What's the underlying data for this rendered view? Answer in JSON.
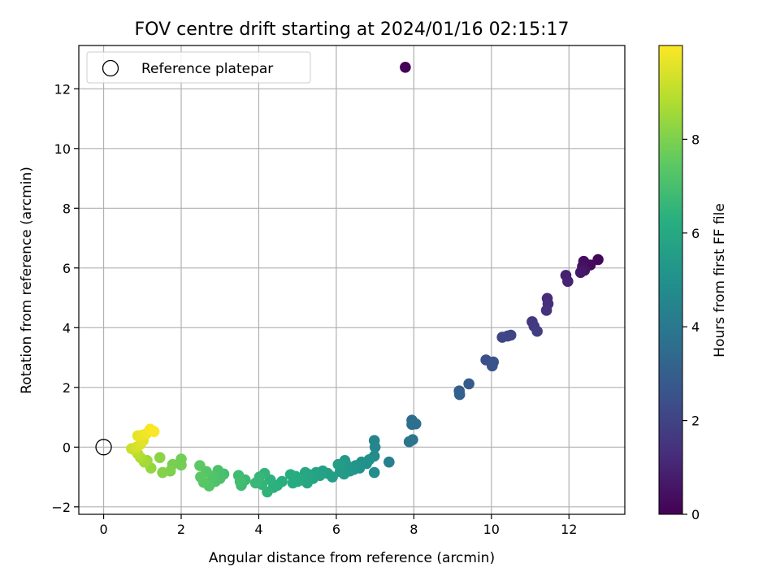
{
  "chart_data": {
    "type": "scatter",
    "title": "FOV centre drift starting at 2024/01/16 02:15:17",
    "xlabel": "Angular distance from reference (arcmin)",
    "ylabel": "Rotation from reference (arcmin)",
    "xlim": [
      -0.64,
      13.44
    ],
    "ylim": [
      -2.25,
      13.45
    ],
    "xticks": [
      0,
      2,
      4,
      6,
      8,
      10,
      12
    ],
    "yticks": [
      -2,
      0,
      2,
      4,
      6,
      8,
      10,
      12
    ],
    "grid": true,
    "legend": {
      "position": "top-left",
      "entries": [
        {
          "label": "Reference platepar",
          "marker": "open-circle"
        }
      ]
    },
    "reference_point": {
      "x": 0,
      "y": 0
    },
    "colorbar": {
      "label": "Hours from first FF file",
      "range": [
        0,
        10
      ],
      "ticks": [
        0,
        2,
        4,
        6,
        8
      ],
      "colormap": "viridis"
    },
    "points": [
      {
        "x": 7.78,
        "y": 12.72,
        "c": 0.05
      },
      {
        "x": 12.75,
        "y": 6.28,
        "c": 0.15
      },
      {
        "x": 12.55,
        "y": 6.1,
        "c": 0.25
      },
      {
        "x": 12.38,
        "y": 6.22,
        "c": 0.35
      },
      {
        "x": 12.35,
        "y": 6.05,
        "c": 0.45
      },
      {
        "x": 12.4,
        "y": 5.92,
        "c": 0.55
      },
      {
        "x": 12.3,
        "y": 5.85,
        "c": 0.65
      },
      {
        "x": 11.92,
        "y": 5.75,
        "c": 0.9
      },
      {
        "x": 11.97,
        "y": 5.55,
        "c": 1.0
      },
      {
        "x": 11.44,
        "y": 4.98,
        "c": 1.2
      },
      {
        "x": 11.46,
        "y": 4.8,
        "c": 1.3
      },
      {
        "x": 11.42,
        "y": 4.58,
        "c": 1.4
      },
      {
        "x": 11.05,
        "y": 4.2,
        "c": 1.6
      },
      {
        "x": 11.1,
        "y": 4.05,
        "c": 1.7
      },
      {
        "x": 11.18,
        "y": 3.88,
        "c": 1.8
      },
      {
        "x": 10.5,
        "y": 3.75,
        "c": 2.0
      },
      {
        "x": 10.42,
        "y": 3.72,
        "c": 2.05
      },
      {
        "x": 10.28,
        "y": 3.68,
        "c": 2.1
      },
      {
        "x": 9.86,
        "y": 2.92,
        "c": 2.4
      },
      {
        "x": 10.05,
        "y": 2.85,
        "c": 2.5
      },
      {
        "x": 10.02,
        "y": 2.72,
        "c": 2.55
      },
      {
        "x": 9.42,
        "y": 2.12,
        "c": 2.8
      },
      {
        "x": 9.17,
        "y": 1.88,
        "c": 3.0
      },
      {
        "x": 9.18,
        "y": 1.76,
        "c": 3.05
      },
      {
        "x": 7.95,
        "y": 0.9,
        "c": 3.5
      },
      {
        "x": 8.05,
        "y": 0.78,
        "c": 3.6
      },
      {
        "x": 7.95,
        "y": 0.76,
        "c": 3.65
      },
      {
        "x": 7.97,
        "y": 0.25,
        "c": 3.8
      },
      {
        "x": 7.88,
        "y": 0.18,
        "c": 3.9
      },
      {
        "x": 7.36,
        "y": -0.5,
        "c": 4.3
      },
      {
        "x": 6.98,
        "y": 0.22,
        "c": 4.5
      },
      {
        "x": 7.0,
        "y": 0.0,
        "c": 4.6
      },
      {
        "x": 6.98,
        "y": -0.3,
        "c": 4.7
      },
      {
        "x": 6.98,
        "y": -0.85,
        "c": 4.8
      },
      {
        "x": 6.85,
        "y": -0.42,
        "c": 4.9
      },
      {
        "x": 6.78,
        "y": -0.55,
        "c": 5.0
      },
      {
        "x": 6.65,
        "y": -0.5,
        "c": 5.0
      },
      {
        "x": 6.6,
        "y": -0.7,
        "c": 5.1
      },
      {
        "x": 6.5,
        "y": -0.62,
        "c": 5.15
      },
      {
        "x": 6.45,
        "y": -0.75,
        "c": 5.2
      },
      {
        "x": 6.35,
        "y": -0.8,
        "c": 5.25
      },
      {
        "x": 6.28,
        "y": -0.62,
        "c": 5.3
      },
      {
        "x": 6.22,
        "y": -0.45,
        "c": 5.35
      },
      {
        "x": 6.2,
        "y": -0.9,
        "c": 5.4
      },
      {
        "x": 6.1,
        "y": -0.82,
        "c": 5.45
      },
      {
        "x": 6.05,
        "y": -0.58,
        "c": 5.5
      },
      {
        "x": 5.9,
        "y": -1.0,
        "c": 5.55
      },
      {
        "x": 5.78,
        "y": -0.88,
        "c": 5.6
      },
      {
        "x": 5.65,
        "y": -0.8,
        "c": 5.65
      },
      {
        "x": 5.58,
        "y": -0.95,
        "c": 5.7
      },
      {
        "x": 5.48,
        "y": -0.85,
        "c": 5.75
      },
      {
        "x": 5.4,
        "y": -1.05,
        "c": 5.8
      },
      {
        "x": 5.3,
        "y": -0.92,
        "c": 5.85
      },
      {
        "x": 5.25,
        "y": -1.2,
        "c": 5.9
      },
      {
        "x": 5.2,
        "y": -0.85,
        "c": 5.95
      },
      {
        "x": 5.1,
        "y": -1.1,
        "c": 6.0
      },
      {
        "x": 5.0,
        "y": -1.15,
        "c": 6.05
      },
      {
        "x": 4.95,
        "y": -0.98,
        "c": 6.1
      },
      {
        "x": 4.88,
        "y": -1.2,
        "c": 6.15
      },
      {
        "x": 4.82,
        "y": -0.92,
        "c": 6.2
      },
      {
        "x": 4.6,
        "y": -1.15,
        "c": 6.25
      },
      {
        "x": 4.48,
        "y": -1.28,
        "c": 6.3
      },
      {
        "x": 4.38,
        "y": -1.35,
        "c": 6.35
      },
      {
        "x": 4.3,
        "y": -1.1,
        "c": 6.4
      },
      {
        "x": 4.22,
        "y": -1.5,
        "c": 6.45
      },
      {
        "x": 4.15,
        "y": -0.88,
        "c": 6.5
      },
      {
        "x": 4.08,
        "y": -1.25,
        "c": 6.55
      },
      {
        "x": 4.02,
        "y": -1.0,
        "c": 6.6
      },
      {
        "x": 3.92,
        "y": -1.2,
        "c": 6.65
      },
      {
        "x": 3.65,
        "y": -1.1,
        "c": 6.75
      },
      {
        "x": 3.55,
        "y": -1.28,
        "c": 6.8
      },
      {
        "x": 3.48,
        "y": -0.95,
        "c": 6.85
      },
      {
        "x": 3.52,
        "y": -1.15,
        "c": 6.9
      },
      {
        "x": 3.1,
        "y": -0.9,
        "c": 7.0
      },
      {
        "x": 3.0,
        "y": -1.05,
        "c": 7.05
      },
      {
        "x": 2.95,
        "y": -0.78,
        "c": 7.1
      },
      {
        "x": 2.88,
        "y": -1.15,
        "c": 7.15
      },
      {
        "x": 2.8,
        "y": -0.98,
        "c": 7.2
      },
      {
        "x": 2.72,
        "y": -1.3,
        "c": 7.25
      },
      {
        "x": 2.65,
        "y": -0.82,
        "c": 7.3
      },
      {
        "x": 2.58,
        "y": -1.18,
        "c": 7.35
      },
      {
        "x": 2.5,
        "y": -1.0,
        "c": 7.4
      },
      {
        "x": 2.48,
        "y": -0.62,
        "c": 7.45
      },
      {
        "x": 2.0,
        "y": -0.4,
        "c": 7.8
      },
      {
        "x": 2.0,
        "y": -0.6,
        "c": 7.85
      },
      {
        "x": 1.78,
        "y": -0.58,
        "c": 7.9
      },
      {
        "x": 1.72,
        "y": -0.8,
        "c": 8.0
      },
      {
        "x": 1.52,
        "y": -0.85,
        "c": 8.1
      },
      {
        "x": 1.45,
        "y": -0.35,
        "c": 8.2
      },
      {
        "x": 1.22,
        "y": -0.7,
        "c": 8.35
      },
      {
        "x": 1.12,
        "y": -0.45,
        "c": 8.5
      },
      {
        "x": 1.05,
        "y": -0.5,
        "c": 8.6
      },
      {
        "x": 0.95,
        "y": -0.35,
        "c": 8.75
      },
      {
        "x": 0.88,
        "y": -0.22,
        "c": 8.9
      },
      {
        "x": 0.8,
        "y": -0.1,
        "c": 9.05
      },
      {
        "x": 0.72,
        "y": -0.05,
        "c": 9.2
      },
      {
        "x": 0.85,
        "y": 0.0,
        "c": 9.35
      },
      {
        "x": 0.95,
        "y": 0.1,
        "c": 9.45
      },
      {
        "x": 1.02,
        "y": 0.22,
        "c": 9.55
      },
      {
        "x": 0.88,
        "y": 0.38,
        "c": 9.65
      },
      {
        "x": 1.0,
        "y": 0.4,
        "c": 9.7
      },
      {
        "x": 1.1,
        "y": 0.45,
        "c": 9.8
      },
      {
        "x": 1.25,
        "y": 0.55,
        "c": 9.85
      },
      {
        "x": 1.2,
        "y": 0.6,
        "c": 9.9
      },
      {
        "x": 1.3,
        "y": 0.52,
        "c": 9.95
      }
    ]
  }
}
